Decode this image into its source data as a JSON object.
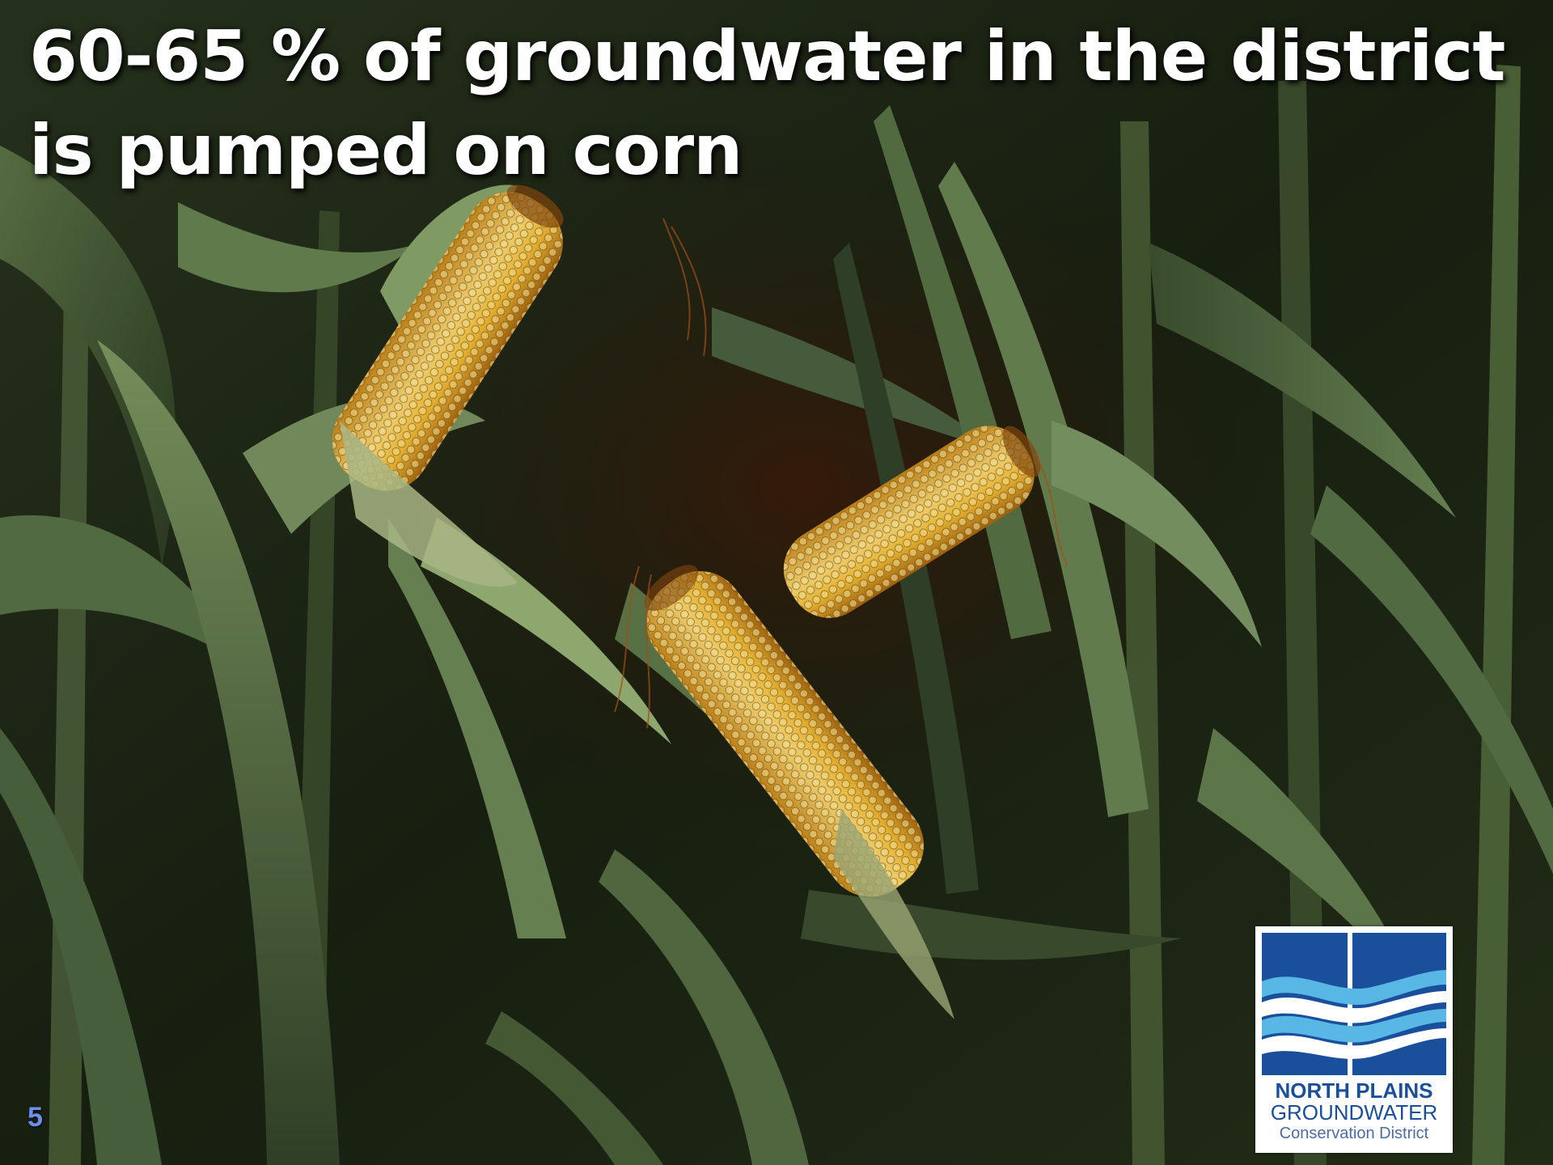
{
  "slide": {
    "title": "60-65 % of groundwater in the district is pumped on corn",
    "page_number": "5"
  },
  "logo": {
    "line1": "NORTH PLAINS",
    "line2": "GROUNDWATER",
    "line3": "Conservation District",
    "colors": {
      "dark_blue": "#1a4f9c",
      "light_blue": "#59b7e6"
    }
  },
  "photo": {
    "subject": "corn-field-with-ears-icon"
  },
  "colors": {
    "title_text": "#ffffff",
    "page_number": "#6f8ff0"
  }
}
